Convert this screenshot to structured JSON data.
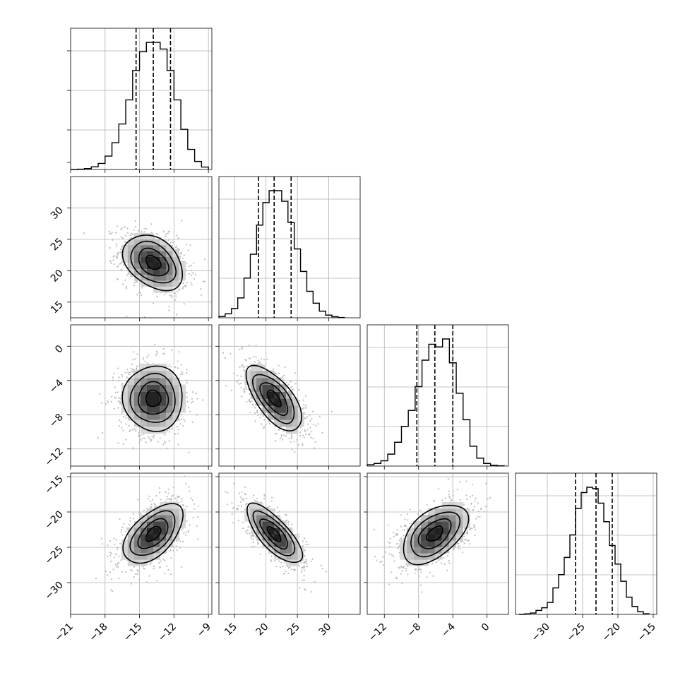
{
  "chart_data": {
    "type": "corner",
    "parameters": [
      {
        "ticks": [
          -21,
          -18,
          -15,
          -12,
          -9
        ],
        "range": [
          -21,
          -8.7
        ],
        "tick_labels": [
          "−21",
          "−18",
          "−15",
          "−12",
          "−9"
        ]
      },
      {
        "ticks": [
          15,
          20,
          25,
          30
        ],
        "range": [
          12.5,
          35
        ],
        "tick_labels": [
          "15",
          "20",
          "25",
          "30"
        ]
      },
      {
        "ticks": [
          -12,
          -8,
          -4,
          0
        ],
        "range": [
          -14,
          2.5
        ],
        "tick_labels": [
          "−12",
          "−8",
          "−4",
          "0"
        ]
      },
      {
        "ticks": [
          -30,
          -25,
          -20,
          -15
        ],
        "range": [
          -34.5,
          -14.5
        ],
        "tick_labels": [
          "−30",
          "−25",
          "−20",
          "−15"
        ]
      }
    ],
    "marginals": [
      {
        "quantiles": [
          -15.3,
          -13.8,
          -12.3
        ],
        "bins": [
          -21,
          -20.4,
          -19.8,
          -19.2,
          -18.6,
          -18,
          -17.4,
          -16.8,
          -16.2,
          -15.6,
          -15,
          -14.4,
          -13.8,
          -13.2,
          -12.6,
          -12,
          -11.4,
          -10.8,
          -10.2,
          -9.6,
          -9
        ],
        "counts": [
          0,
          0.002,
          0.007,
          0.02,
          0.045,
          0.1,
          0.2,
          0.34,
          0.52,
          0.74,
          0.88,
          0.95,
          0.95,
          0.9,
          0.74,
          0.52,
          0.3,
          0.15,
          0.06,
          0.018
        ]
      },
      {
        "quantiles": [
          18.8,
          21.3,
          24
        ],
        "bins": [
          12.5,
          13.5,
          14.5,
          15.5,
          16.5,
          17.5,
          18.5,
          19.5,
          20.5,
          21.5,
          22.5,
          23.5,
          24.5,
          25.5,
          26.5,
          27.5,
          28.5,
          29.5,
          30.5,
          31.5,
          32.5
        ],
        "counts": [
          0.01,
          0.03,
          0.07,
          0.15,
          0.3,
          0.48,
          0.7,
          0.87,
          0.96,
          0.96,
          0.88,
          0.72,
          0.52,
          0.35,
          0.2,
          0.11,
          0.05,
          0.02,
          0.008,
          0.002
        ]
      },
      {
        "quantiles": [
          -8.2,
          -6.1,
          -4
        ],
        "bins": [
          -14,
          -13.2,
          -12.4,
          -11.6,
          -10.8,
          -10,
          -9.2,
          -8.4,
          -7.6,
          -6.8,
          -6,
          -5.2,
          -4.4,
          -3.6,
          -2.8,
          -2,
          -1.2,
          -0.4,
          0.4,
          1.2,
          2
        ],
        "counts": [
          0.01,
          0.02,
          0.04,
          0.09,
          0.18,
          0.3,
          0.42,
          0.6,
          0.8,
          0.92,
          0.9,
          0.96,
          0.78,
          0.55,
          0.35,
          0.15,
          0.06,
          0.02,
          0.006,
          0.002
        ]
      },
      {
        "quantiles": [
          -26,
          -23.1,
          -20.8
        ],
        "bins": [
          -34,
          -33.2,
          -32.4,
          -31.6,
          -30.8,
          -30,
          -29.2,
          -28.4,
          -27.6,
          -26.8,
          -26,
          -25.2,
          -24.4,
          -23.6,
          -22.8,
          -22,
          -21.2,
          -20.4,
          -19.6,
          -18.8,
          -18,
          -17.2,
          -16.4,
          -15.6
        ],
        "counts": [
          0,
          0.004,
          0.01,
          0.03,
          0.05,
          0.09,
          0.2,
          0.3,
          0.43,
          0.6,
          0.8,
          0.92,
          0.96,
          0.95,
          0.84,
          0.7,
          0.52,
          0.38,
          0.25,
          0.13,
          0.06,
          0.02,
          0.005
        ]
      }
    ],
    "pairs": [
      {
        "i": 1,
        "j": 0,
        "mean": [
          -13.8,
          21.3
        ],
        "sd": [
          1.3,
          2.2
        ],
        "rho": -0.35
      },
      {
        "i": 2,
        "j": 0,
        "mean": [
          -13.8,
          -6.1
        ],
        "sd": [
          1.3,
          1.9
        ],
        "rho": 0.0
      },
      {
        "i": 2,
        "j": 1,
        "mean": [
          21.3,
          -6.1
        ],
        "sd": [
          2.2,
          1.9
        ],
        "rho": -0.65
      },
      {
        "i": 3,
        "j": 0,
        "mean": [
          -13.8,
          -23.1
        ],
        "sd": [
          1.3,
          2.1
        ],
        "rho": 0.55
      },
      {
        "i": 3,
        "j": 1,
        "mean": [
          21.3,
          -23.1
        ],
        "sd": [
          2.2,
          2.1
        ],
        "rho": -0.75
      },
      {
        "i": 3,
        "j": 2,
        "mean": [
          -6.1,
          -23.1
        ],
        "sd": [
          1.9,
          2.1
        ],
        "rho": 0.5
      }
    ],
    "contour_levels": [
      0.5,
      1.0,
      1.5,
      2.0
    ],
    "grid": true,
    "colors": {
      "line": "#000000",
      "grid": "#b0b0b0",
      "points": "#bdbdbd"
    }
  }
}
